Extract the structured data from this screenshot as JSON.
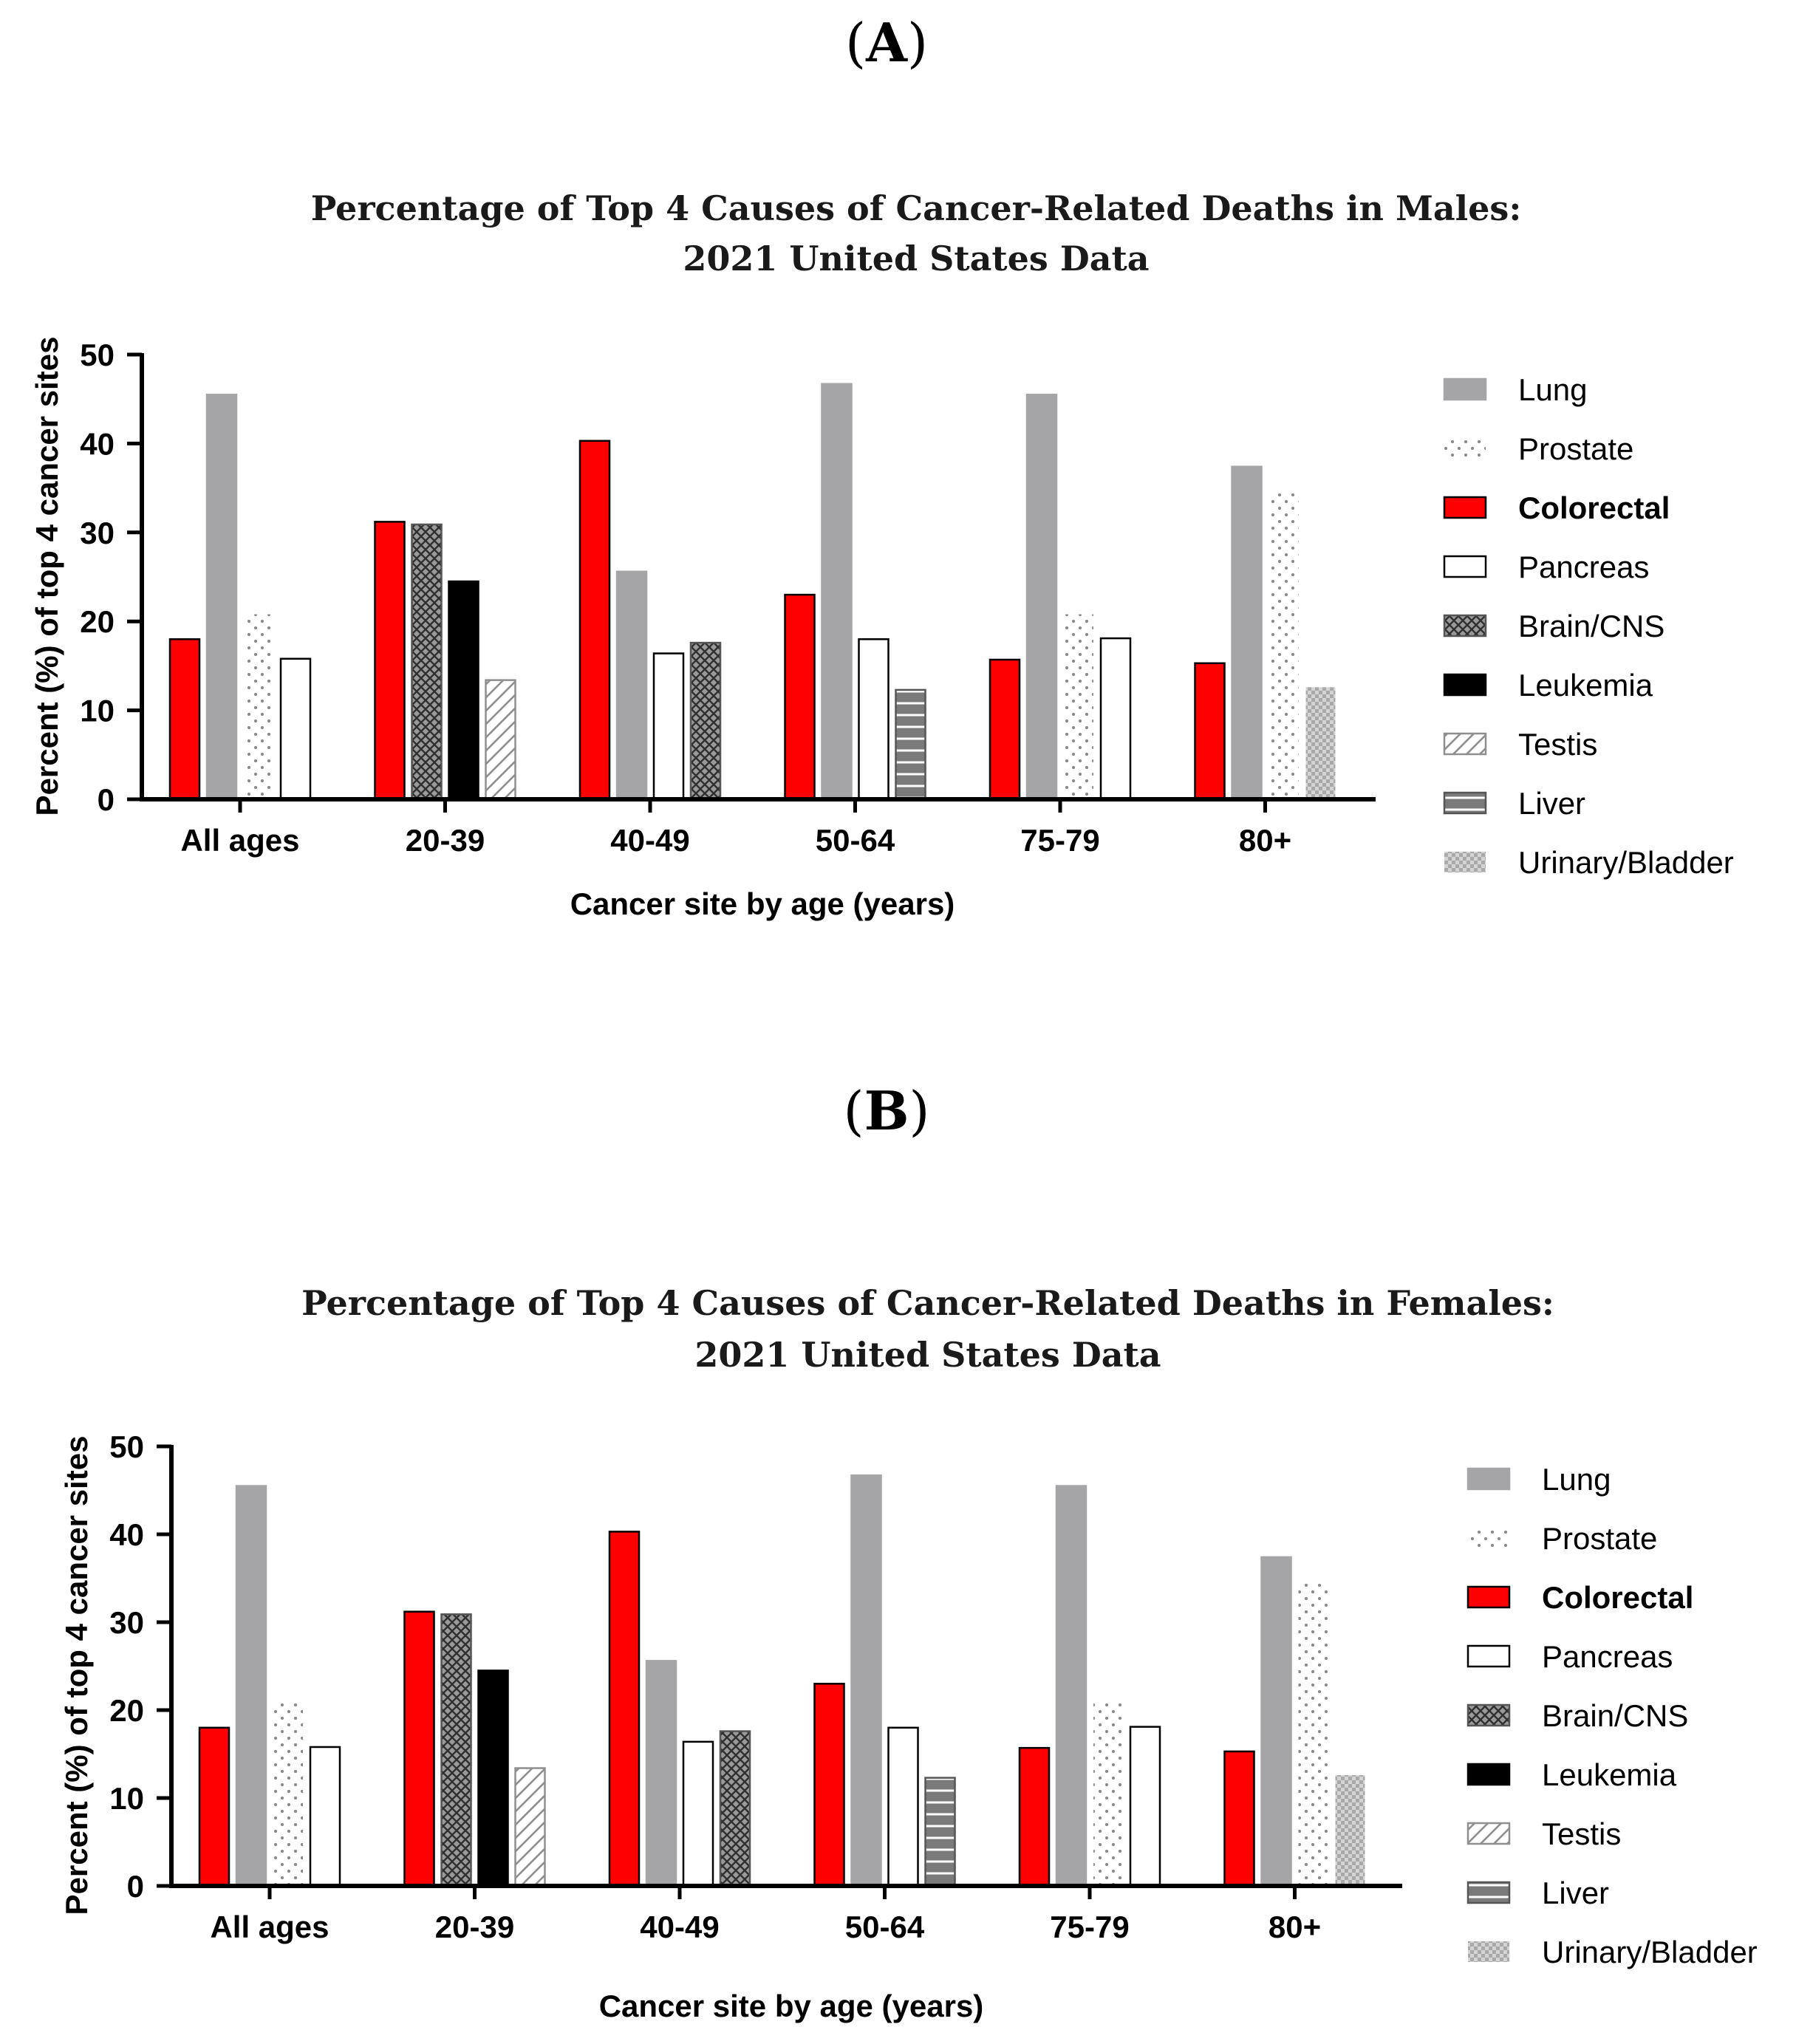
{
  "panels": [
    {
      "label": "A",
      "chart_data": {
        "type": "bar",
        "title_lines": [
          "Percentage of Top 4 Causes of Cancer-Related Deaths in Males:",
          "2021 United States Data"
        ],
        "xlabel": "Cancer site by age (years)",
        "ylabel": "Percent  (%) of top 4 cancer sites",
        "ylim": [
          0,
          50
        ],
        "yticks": [
          0,
          10,
          20,
          30,
          40,
          50
        ],
        "categories": [
          "All ages",
          "20-39",
          "40-49",
          "50-64",
          "75-79",
          "80+"
        ],
        "groups": [
          {
            "category": "All ages",
            "bars": [
              {
                "series": "Colorectal",
                "value": 18.0
              },
              {
                "series": "Lung",
                "value": 45.5
              },
              {
                "series": "Prostate",
                "value": 20.8
              },
              {
                "series": "Pancreas",
                "value": 15.8
              }
            ]
          },
          {
            "category": "20-39",
            "bars": [
              {
                "series": "Colorectal",
                "value": 31.2
              },
              {
                "series": "Brain/CNS",
                "value": 30.9
              },
              {
                "series": "Leukemia",
                "value": 24.5
              },
              {
                "series": "Testis",
                "value": 13.4
              }
            ]
          },
          {
            "category": "40-49",
            "bars": [
              {
                "series": "Colorectal",
                "value": 40.3
              },
              {
                "series": "Lung",
                "value": 25.6
              },
              {
                "series": "Pancreas",
                "value": 16.4
              },
              {
                "series": "Brain/CNS",
                "value": 17.6
              }
            ]
          },
          {
            "category": "50-64",
            "bars": [
              {
                "series": "Colorectal",
                "value": 23.0
              },
              {
                "series": "Lung",
                "value": 46.7
              },
              {
                "series": "Pancreas",
                "value": 18.0
              },
              {
                "series": "Liver",
                "value": 12.3
              }
            ]
          },
          {
            "category": "75-79",
            "bars": [
              {
                "series": "Colorectal",
                "value": 15.7
              },
              {
                "series": "Lung",
                "value": 45.5
              },
              {
                "series": "Prostate",
                "value": 20.8
              },
              {
                "series": "Pancreas",
                "value": 18.1
              }
            ]
          },
          {
            "category": "80+",
            "bars": [
              {
                "series": "Colorectal",
                "value": 15.3
              },
              {
                "series": "Lung",
                "value": 37.4
              },
              {
                "series": "Prostate",
                "value": 34.7
              },
              {
                "series": "Urinary/Bladder",
                "value": 12.6
              }
            ]
          }
        ],
        "legend": [
          "Lung",
          "Prostate",
          "Colorectal",
          "Pancreas",
          "Brain/CNS",
          "Leukemia",
          "Testis",
          "Liver",
          "Urinary/Bladder"
        ],
        "legend_bold": [
          "Colorectal"
        ],
        "legend_position": "right",
        "grid": false
      }
    },
    {
      "label": "B",
      "chart_data": {
        "type": "bar",
        "title_lines": [
          "Percentage of Top 4 Causes of Cancer-Related Deaths in Females:",
          "2021 United States Data"
        ],
        "xlabel": "Cancer site by age (years)",
        "ylabel": "Percent  (%) of top 4 cancer sites",
        "ylim": [
          0,
          50
        ],
        "yticks": [
          0,
          10,
          20,
          30,
          40,
          50
        ],
        "categories": [
          "All ages",
          "20-39",
          "40-49",
          "50-64",
          "75-79",
          "80+"
        ],
        "groups": [
          {
            "category": "All ages",
            "bars": [
              {
                "series": "Colorectal",
                "value": 18.0
              },
              {
                "series": "Lung",
                "value": 45.5
              },
              {
                "series": "Prostate",
                "value": 20.8
              },
              {
                "series": "Pancreas",
                "value": 15.8
              }
            ]
          },
          {
            "category": "20-39",
            "bars": [
              {
                "series": "Colorectal",
                "value": 31.2
              },
              {
                "series": "Brain/CNS",
                "value": 30.9
              },
              {
                "series": "Leukemia",
                "value": 24.5
              },
              {
                "series": "Testis",
                "value": 13.4
              }
            ]
          },
          {
            "category": "40-49",
            "bars": [
              {
                "series": "Colorectal",
                "value": 40.3
              },
              {
                "series": "Lung",
                "value": 25.6
              },
              {
                "series": "Pancreas",
                "value": 16.4
              },
              {
                "series": "Brain/CNS",
                "value": 17.6
              }
            ]
          },
          {
            "category": "50-64",
            "bars": [
              {
                "series": "Colorectal",
                "value": 23.0
              },
              {
                "series": "Lung",
                "value": 46.7
              },
              {
                "series": "Pancreas",
                "value": 18.0
              },
              {
                "series": "Liver",
                "value": 12.3
              }
            ]
          },
          {
            "category": "75-79",
            "bars": [
              {
                "series": "Colorectal",
                "value": 15.7
              },
              {
                "series": "Lung",
                "value": 45.5
              },
              {
                "series": "Prostate",
                "value": 20.8
              },
              {
                "series": "Pancreas",
                "value": 18.1
              }
            ]
          },
          {
            "category": "80+",
            "bars": [
              {
                "series": "Colorectal",
                "value": 15.3
              },
              {
                "series": "Lung",
                "value": 37.4
              },
              {
                "series": "Prostate",
                "value": 34.7
              },
              {
                "series": "Urinary/Bladder",
                "value": 12.6
              }
            ]
          }
        ],
        "legend": [
          "Lung",
          "Prostate",
          "Colorectal",
          "Pancreas",
          "Brain/CNS",
          "Leukemia",
          "Testis",
          "Liver",
          "Urinary/Bladder"
        ],
        "legend_bold": [
          "Colorectal"
        ],
        "legend_position": "right",
        "grid": false
      }
    }
  ],
  "series_colors": {
    "Lung": "#a5a5a8",
    "Colorectal": "#ff0000",
    "Leukemia": "#000000",
    "Pancreas": "#ffffff"
  }
}
